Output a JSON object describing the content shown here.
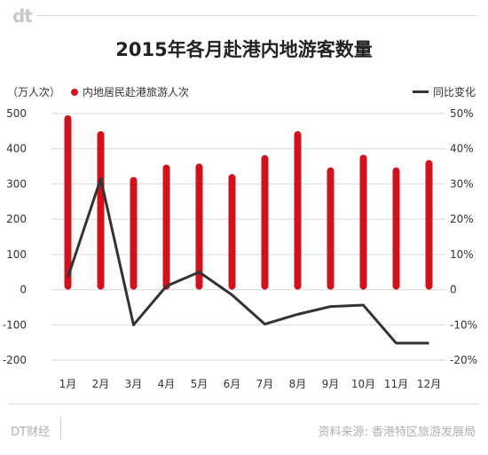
{
  "brand": {
    "logo": "dt",
    "footer_left": "DT财经"
  },
  "source": "资料来源: 香港特区旅游发展局",
  "colors": {
    "bar": "#d0121b",
    "line": "#333333",
    "grid": "#d9d9d9"
  },
  "chart_data": {
    "type": "bar+line",
    "title": "2015年各月赴港内地游客数量",
    "unit_label": "（万人次）",
    "categories": [
      "1月",
      "2月",
      "3月",
      "4月",
      "5月",
      "6月",
      "7月",
      "8月",
      "9月",
      "10月",
      "11月",
      "12月"
    ],
    "series": [
      {
        "name": "内地居民赴港旅游人次",
        "type": "bar",
        "axis": "left",
        "values": [
          495,
          450,
          320,
          355,
          358,
          328,
          382,
          450,
          347,
          383,
          347,
          368
        ]
      },
      {
        "name": "同比变化",
        "type": "line",
        "axis": "right",
        "values": [
          3.5,
          31.5,
          -10,
          1,
          5,
          -1.5,
          -9.8,
          -7,
          -4.8,
          -4.4,
          -15.2,
          -15.2
        ]
      }
    ],
    "left_axis": {
      "ylim": [
        -200,
        500
      ],
      "ticks": [
        "500",
        "400",
        "300",
        "200",
        "100",
        "0",
        "-100",
        "-200"
      ]
    },
    "right_axis": {
      "ylim": [
        -20,
        50
      ],
      "ticks": [
        "50%",
        "40%",
        "30%",
        "20%",
        "10%",
        "0",
        "-10%",
        "-20%"
      ]
    },
    "grid": true,
    "legend_position": "top"
  }
}
